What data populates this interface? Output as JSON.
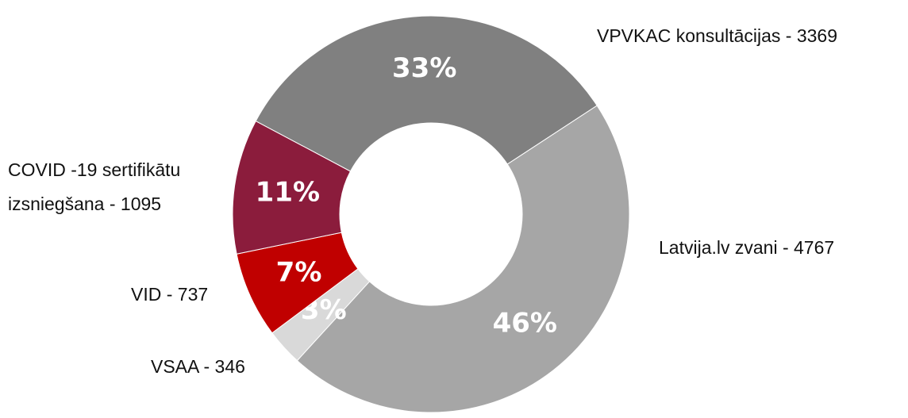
{
  "chart_data": {
    "type": "donut",
    "categories": [
      "VPVKAC konsultācijas - 3369",
      "Latvija.lv zvani - 4767",
      "VSAA - 346",
      "VID - 737",
      "COVID -19 sertifikātu izsniegšana - 1095"
    ],
    "values": [
      33,
      46,
      3,
      7,
      11
    ],
    "value_labels": [
      "33%",
      "46%",
      "3%",
      "7%",
      "11%"
    ],
    "colors": [
      "#808080",
      "#a6a6a6",
      "#d9d9d9",
      "#c00000",
      "#8b1c3c"
    ]
  }
}
